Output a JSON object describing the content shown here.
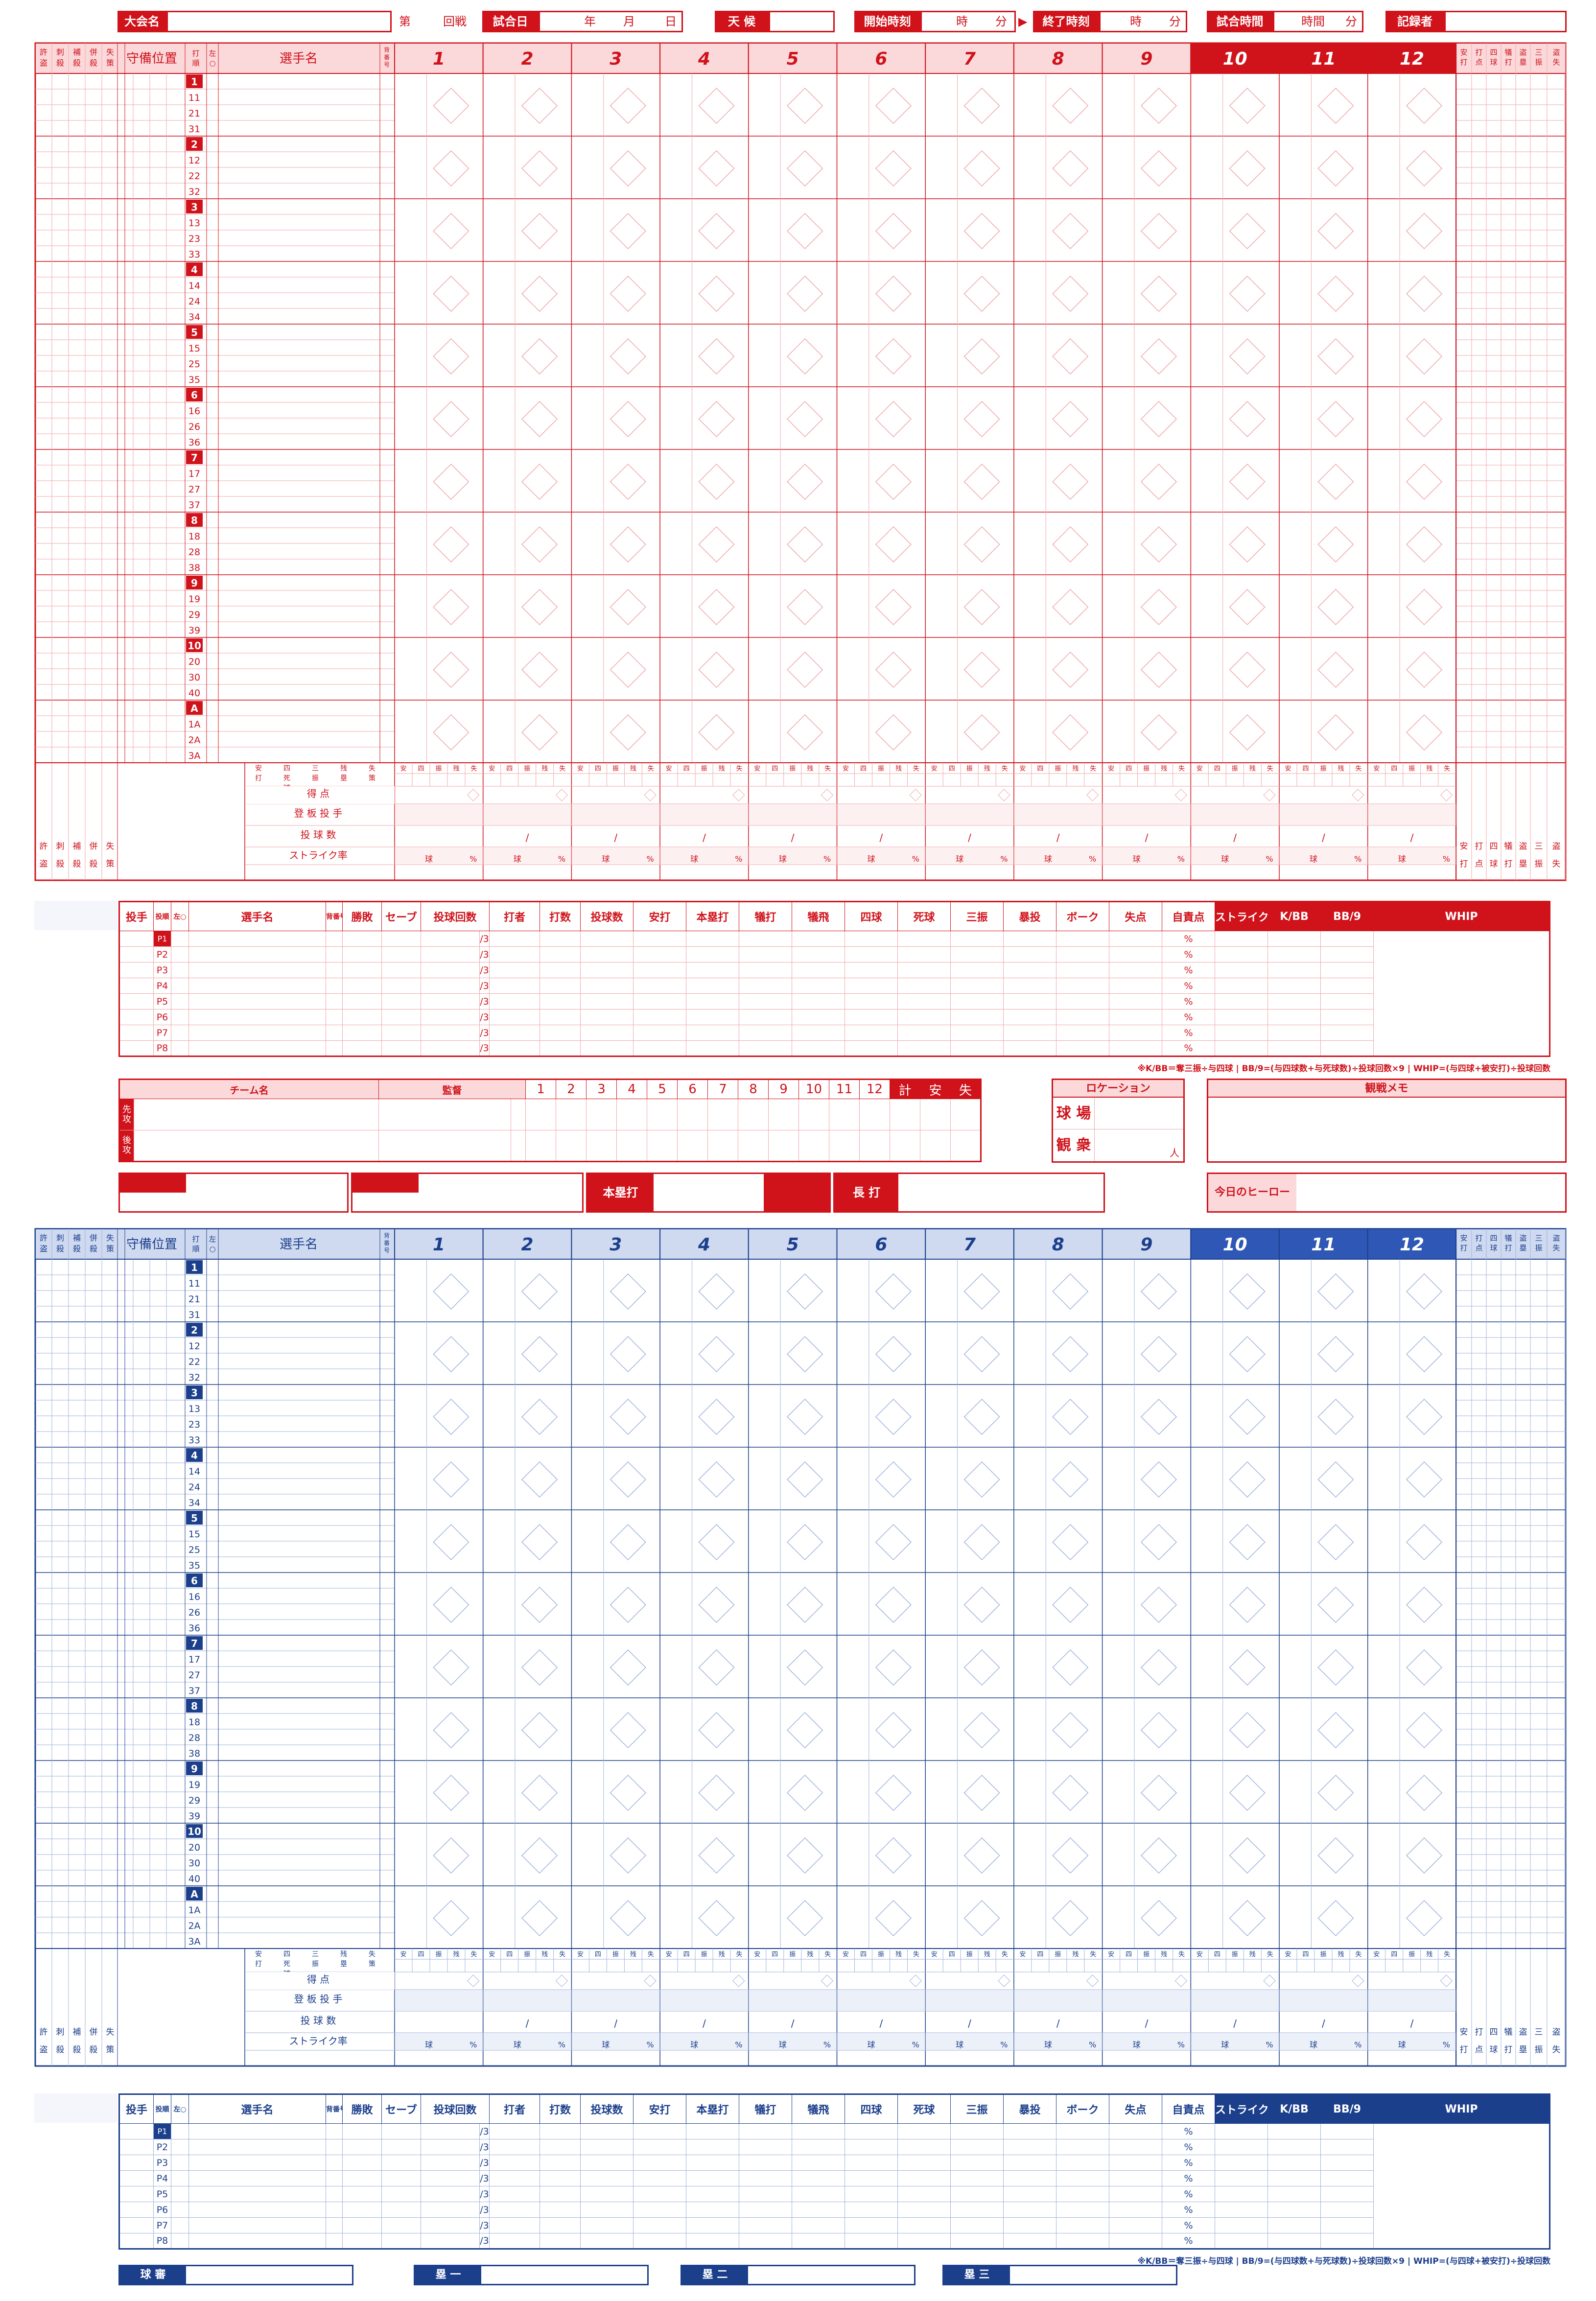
{
  "header": {
    "tournament_label": "大会名",
    "round_prefix": "第",
    "round_suffix": "回戦",
    "date_label": "試合日",
    "year": "年",
    "month": "月",
    "day": "日",
    "weather_label": "天 候",
    "start_label": "開始時刻",
    "end_label": "終了時刻",
    "arrow": "▶",
    "hour": "時",
    "minute": "分",
    "duration_label": "試合時間",
    "duration_unit": "時間",
    "recorder_label": "記録者"
  },
  "lineup": {
    "defense_label": "守備位置",
    "player_name_label": "選手名",
    "order_label": "打順",
    "lr_label": "左○",
    "back_number_label": "背番号",
    "orders": [
      "1",
      "2",
      "3",
      "4",
      "5",
      "6",
      "7",
      "8",
      "9",
      "10",
      "A"
    ],
    "subs": [
      [
        "11",
        "21",
        "31"
      ],
      [
        "12",
        "22",
        "32"
      ],
      [
        "13",
        "23",
        "33"
      ],
      [
        "14",
        "24",
        "34"
      ],
      [
        "15",
        "25",
        "35"
      ],
      [
        "16",
        "26",
        "36"
      ],
      [
        "17",
        "27",
        "37"
      ],
      [
        "18",
        "28",
        "38"
      ],
      [
        "19",
        "29",
        "39"
      ],
      [
        "20",
        "30",
        "40"
      ],
      [
        "1A",
        "2A",
        "3A"
      ]
    ],
    "innings": [
      "1",
      "2",
      "3",
      "4",
      "5",
      "6",
      "7",
      "8",
      "9",
      "10",
      "11",
      "12"
    ],
    "left_stats": [
      "許盗",
      "刺殺",
      "補殺",
      "併殺",
      "失策"
    ],
    "right_stats_top": [
      "安打",
      "打点",
      "四球",
      "犠打",
      "盗塁",
      "三振",
      "盗失"
    ],
    "right_stats_bottom": [
      "打",
      "点",
      "球",
      "打",
      "塁",
      "振",
      "失"
    ],
    "summary_cols": [
      "安打",
      "四死球",
      "三振",
      "残塁",
      "失策"
    ],
    "summary_cell": [
      "安",
      "四",
      "振",
      "残",
      "失"
    ],
    "runs_label": "得 点",
    "pitcher_label": "登 板 投 手",
    "pitch_count_label": "投 球 数",
    "strike_label": "ストライク率",
    "ball_unit": "球",
    "percent": "%",
    "slash": "/"
  },
  "pitching": {
    "headers": [
      "投手",
      "投順",
      "左○",
      "選手名",
      "背番号",
      "勝敗",
      "セーブ",
      "投球回数",
      "打者",
      "打数",
      "投球数",
      "安打",
      "本塁打",
      "犠打",
      "犠飛",
      "四球",
      "死球",
      "三振",
      "暴投",
      "ボーク",
      "失点",
      "自責点",
      "ストライク率",
      "K/BB",
      "BB/9",
      "WHIP"
    ],
    "rows": [
      "P1",
      "P2",
      "P3",
      "P4",
      "P5",
      "P6",
      "P7",
      "P8"
    ],
    "innings_suffix": "/3",
    "footnote": "※K/BB＝奪三振÷与四球 | BB/9=(与四球数+与死球数)÷投球回数×9 | WHIP=(与四球+被安打)÷投球回数"
  },
  "score": {
    "team_label": "チーム名",
    "manager_label": "監督",
    "cols": [
      "1",
      "2",
      "3",
      "4",
      "5",
      "6",
      "7",
      "8",
      "9",
      "10",
      "11",
      "12",
      "計",
      "安",
      "失"
    ],
    "first": "先攻",
    "second": "後攻",
    "location_label": "ロケーション",
    "stadium_label": "球 場",
    "crowd_label": "観 衆",
    "person_unit": "人",
    "memo_label": "観戦メモ"
  },
  "records": {
    "homerun_label": "本塁打",
    "long_label": "長 打",
    "hero_label": "今日のヒーロー"
  },
  "umpires": [
    "球 審",
    "塁 一",
    "塁 二",
    "塁 三"
  ]
}
